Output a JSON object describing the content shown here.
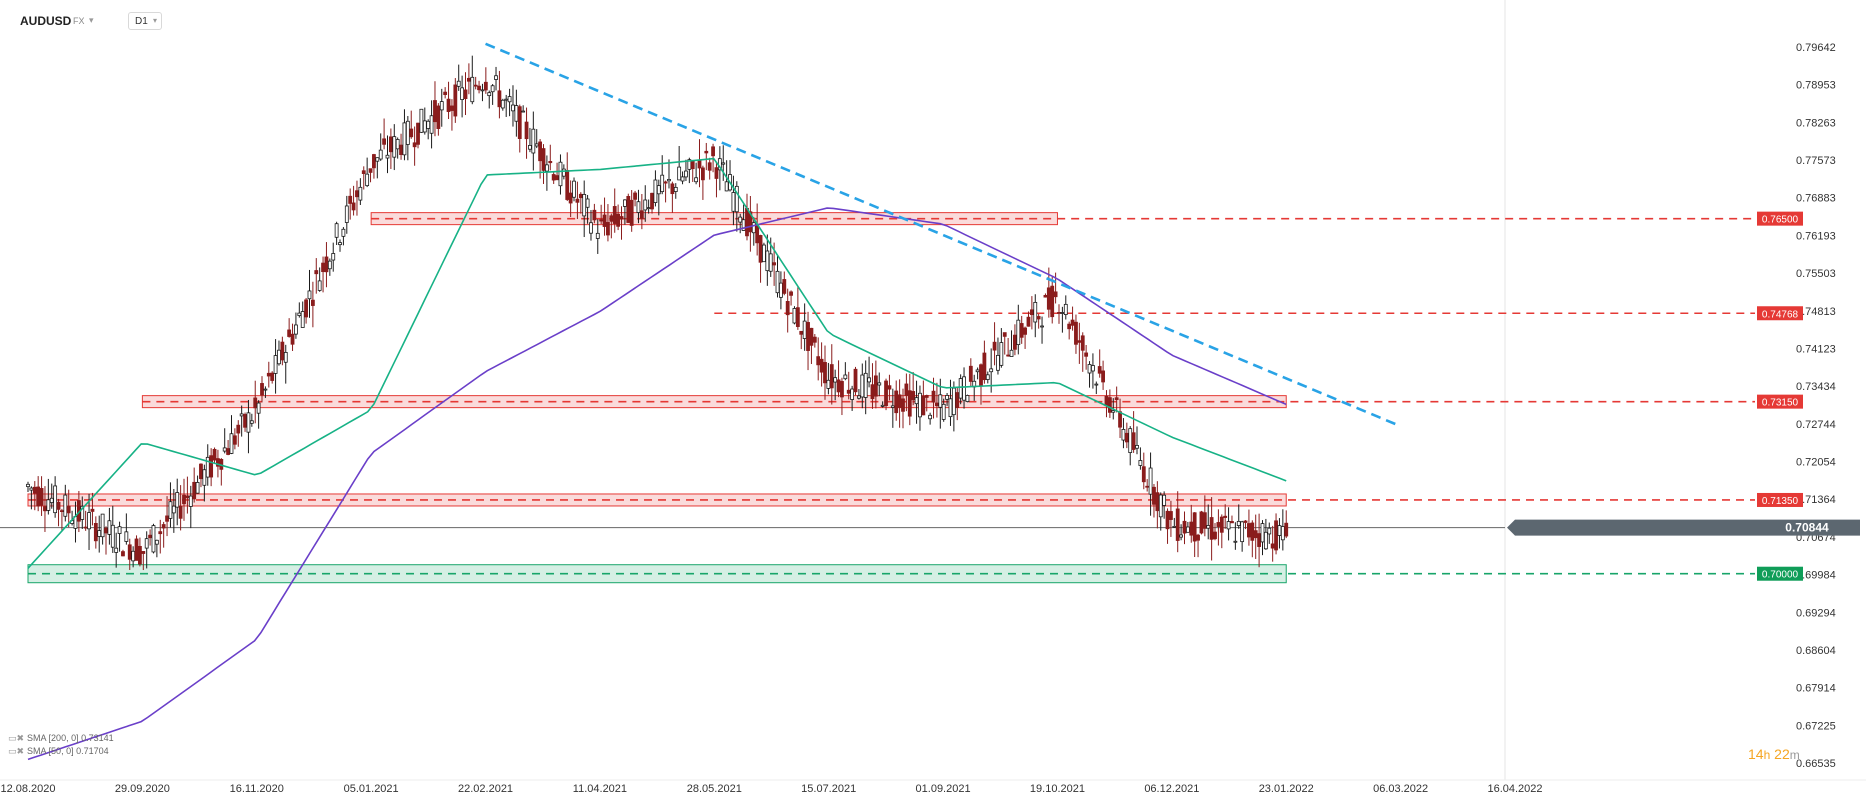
{
  "header": {
    "symbol": "AUDUSD",
    "market": "FX",
    "market_chevron": "▾",
    "timeframe": "D1",
    "timeframe_chevron": "▾"
  },
  "legend": [
    {
      "text": "SMA [200, 0]",
      "value": "0.73141",
      "color": "#6a3fc9"
    },
    {
      "text": "SMA [50, 0]",
      "value": "0.71704",
      "color": "#17b286"
    }
  ],
  "timer": {
    "hours": "14",
    "h_unit": "h",
    "minutes": "22",
    "m_unit": "m"
  },
  "colors": {
    "bull": "#1a1a1a",
    "bear": "#8a1c1c",
    "sma200": "#6a3fc9",
    "sma50": "#17b286",
    "resistance": "#e53935",
    "support": "#18a56a",
    "trend": "#29a3e6",
    "price": "#666666"
  },
  "chart_data": {
    "type": "candlestick",
    "symbol": "AUDUSD",
    "timeframe": "D1",
    "y_ticks": [
      "0.79642",
      "0.78953",
      "0.78263",
      "0.77573",
      "0.76883",
      "0.76193",
      "0.75503",
      "0.74813",
      "0.74123",
      "0.73434",
      "0.72744",
      "0.72054",
      "0.71364",
      "0.70674",
      "0.69984",
      "0.69294",
      "0.68604",
      "0.67914",
      "0.67225",
      "0.66535"
    ],
    "x_ticks": [
      "12.08.2020",
      "29.09.2020",
      "16.11.2020",
      "05.01.2021",
      "22.02.2021",
      "11.04.2021",
      "28.05.2021",
      "15.07.2021",
      "01.09.2021",
      "19.10.2021",
      "06.12.2021",
      "23.01.2022",
      "06.03.2022",
      "16.04.2022"
    ],
    "ylim": [
      0.66535,
      0.79642
    ],
    "last_price": {
      "value": 0.70844,
      "label": "0.70844"
    },
    "levels": [
      {
        "value": 0.765,
        "label": "0.76500",
        "type": "resistance",
        "zone_from": "05.01.2021",
        "zone_to": "19.10.2021"
      },
      {
        "value": 0.74768,
        "label": "0.74768",
        "type": "resistance",
        "zone_from": "28.05.2021",
        "zone_to": "28.05.2021"
      },
      {
        "value": 0.7315,
        "label": "0.73150",
        "type": "resistance",
        "zone_from": "29.09.2020",
        "zone_to": "23.01.2022"
      },
      {
        "value": 0.7135,
        "label": "0.71350",
        "type": "resistance",
        "zone_from": "12.08.2020",
        "zone_to": "23.01.2022"
      },
      {
        "value": 0.7,
        "label": "0.70000",
        "type": "support",
        "zone_from": "12.08.2020",
        "zone_to": "23.01.2022"
      }
    ],
    "trendline": {
      "from": [
        "22.02.2021",
        0.797
      ],
      "to": [
        "06.03.2022",
        0.727
      ]
    },
    "sma200": [
      [
        "12.08.2020",
        0.666
      ],
      [
        "29.09.2020",
        0.673
      ],
      [
        "16.11.2020",
        0.688
      ],
      [
        "05.01.2021",
        0.722
      ],
      [
        "22.02.2021",
        0.737
      ],
      [
        "11.04.2021",
        0.748
      ],
      [
        "28.05.2021",
        0.762
      ],
      [
        "15.07.2021",
        0.767
      ],
      [
        "01.09.2021",
        0.764
      ],
      [
        "19.10.2021",
        0.754
      ],
      [
        "06.12.2021",
        0.74
      ],
      [
        "23.01.2022",
        0.731
      ]
    ],
    "sma50": [
      [
        "12.08.2020",
        0.701
      ],
      [
        "29.09.2020",
        0.724
      ],
      [
        "16.11.2020",
        0.718
      ],
      [
        "05.01.2021",
        0.73
      ],
      [
        "22.02.2021",
        0.773
      ],
      [
        "11.04.2021",
        0.774
      ],
      [
        "28.05.2021",
        0.776
      ],
      [
        "15.07.2021",
        0.744
      ],
      [
        "01.09.2021",
        0.734
      ],
      [
        "19.10.2021",
        0.735
      ],
      [
        "06.12.2021",
        0.725
      ],
      [
        "23.01.2022",
        0.717
      ]
    ],
    "close_path": [
      [
        "12.08.2020",
        0.716
      ],
      [
        "29.09.2020",
        0.704
      ],
      [
        "16.11.2020",
        0.73
      ],
      [
        "05.01.2021",
        0.775
      ],
      [
        "22.02.2021",
        0.791
      ],
      [
        "11.04.2021",
        0.763
      ],
      [
        "28.05.2021",
        0.776
      ],
      [
        "15.07.2021",
        0.736
      ],
      [
        "01.09.2021",
        0.73
      ],
      [
        "19.10.2021",
        0.751
      ],
      [
        "06.12.2021",
        0.709
      ],
      [
        "23.01.2022",
        0.707
      ]
    ]
  }
}
